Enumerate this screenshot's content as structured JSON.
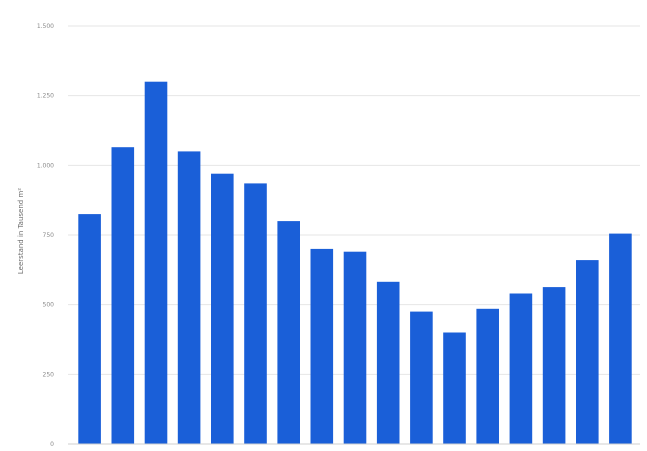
{
  "chart_data": {
    "type": "bar",
    "title": "",
    "xlabel": "",
    "ylabel": "Leerstand in Tausend m²",
    "ylim": [
      0,
      1500
    ],
    "yticks": [
      0,
      250,
      500,
      750,
      1000,
      1250,
      1500
    ],
    "ytick_labels": [
      "0",
      "250",
      "500",
      "750",
      "1.000",
      "1.250",
      "1.500"
    ],
    "grid": true,
    "bar_color": "#1a5fd8",
    "values": [
      825,
      1065,
      1300,
      1050,
      970,
      935,
      800,
      700,
      690,
      582,
      475,
      400,
      485,
      540,
      563,
      660,
      755
    ]
  }
}
